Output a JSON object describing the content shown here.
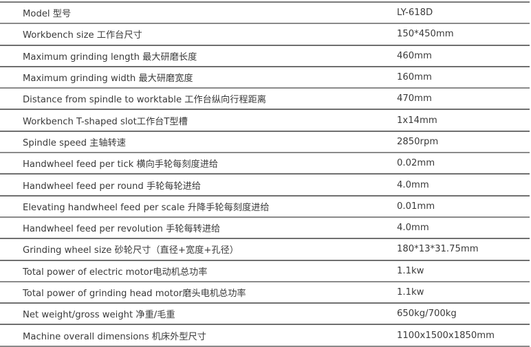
{
  "specs": [
    {
      "param": "Model 型号",
      "value": "LY-618D"
    },
    {
      "param": "Workbench size 工作台尺寸",
      "value": "150*450mm"
    },
    {
      "param": "Maximum grinding length 最大研磨长度",
      "value": "460mm"
    },
    {
      "param": "Maximum grinding width 最大研磨宽度",
      "value": "160mm"
    },
    {
      "param": "Distance from spindle to worktable 工作台纵向行程距离",
      "value": "470mm"
    },
    {
      "param": "Workbench T-shaped slot工作台T型槽",
      "value": "1x14mm"
    },
    {
      "param": "Spindle speed 主轴转速",
      "value": "2850rpm"
    },
    {
      "param": "Handwheel feed per tick 横向手轮每刻度进给",
      "value": "0.02mm"
    },
    {
      "param": "Handwheel feed per round  手轮每轮进给",
      "value": "4.0mm"
    },
    {
      "param": "Elevating handwheel feed per scale 升降手轮每刻度进给",
      "value": "0.01mm"
    },
    {
      "param": "Handwheel feed per revolution 手轮每转进给",
      "value": "4.0mm"
    },
    {
      "param": "Grinding wheel size 砂轮尺寸（直径+宽度+孔径）",
      "value": "180*13*31.75mm"
    },
    {
      "param": "Total power of electric motor电动机总功率",
      "value": "1.1kw"
    },
    {
      "param": "Total power of grinding head motor磨头电机总功率",
      "value": "1.1kw"
    },
    {
      "param": "Net weight/gross weight 净重/毛重",
      "value": "650kg/700kg"
    },
    {
      "param": "Machine overall dimensions 机床外型尺寸",
      "value": "1100x1500x1850mm"
    }
  ]
}
